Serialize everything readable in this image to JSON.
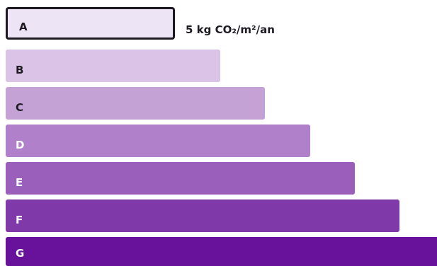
{
  "chart_data": {
    "type": "bar",
    "orientation": "horizontal",
    "categories": [
      "A",
      "B",
      "C",
      "D",
      "E",
      "F",
      "G"
    ],
    "active_class": "A",
    "active_value_label": "5 kg CO₂/m²/an",
    "colors": [
      "#ede4f5",
      "#dac3e6",
      "#c5a2d6",
      "#b080ca",
      "#9a5ebb",
      "#8039a8",
      "#68119a"
    ],
    "letter_colors": [
      "#1e1a22",
      "#1e1a22",
      "#1e1a22",
      "#ffffff",
      "#ffffff",
      "#ffffff",
      "#ffffff"
    ]
  }
}
